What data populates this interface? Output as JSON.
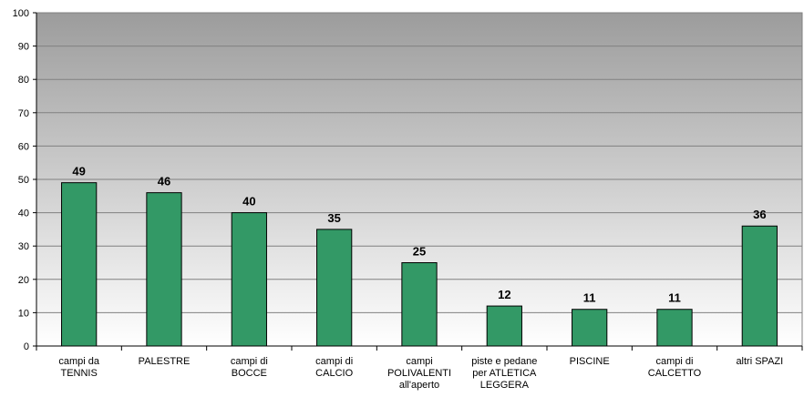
{
  "chart_data": {
    "type": "bar",
    "categories": [
      "campi da\nTENNIS",
      "PALESTRE",
      "campi di\nBOCCE",
      "campi di\nCALCIO",
      "campi\nPOLIVALENTI\nall'aperto",
      "piste e pedane\nper ATLETICA\nLEGGERA",
      "PISCINE",
      "campi di\nCALCETTO",
      "altri SPAZI"
    ],
    "values": [
      49,
      46,
      40,
      35,
      25,
      12,
      11,
      11,
      36
    ],
    "color": "#339966",
    "ylim": [
      0,
      100
    ],
    "yticks": [
      0,
      10,
      20,
      30,
      40,
      50,
      60,
      70,
      80,
      90,
      100
    ],
    "grid": true
  }
}
